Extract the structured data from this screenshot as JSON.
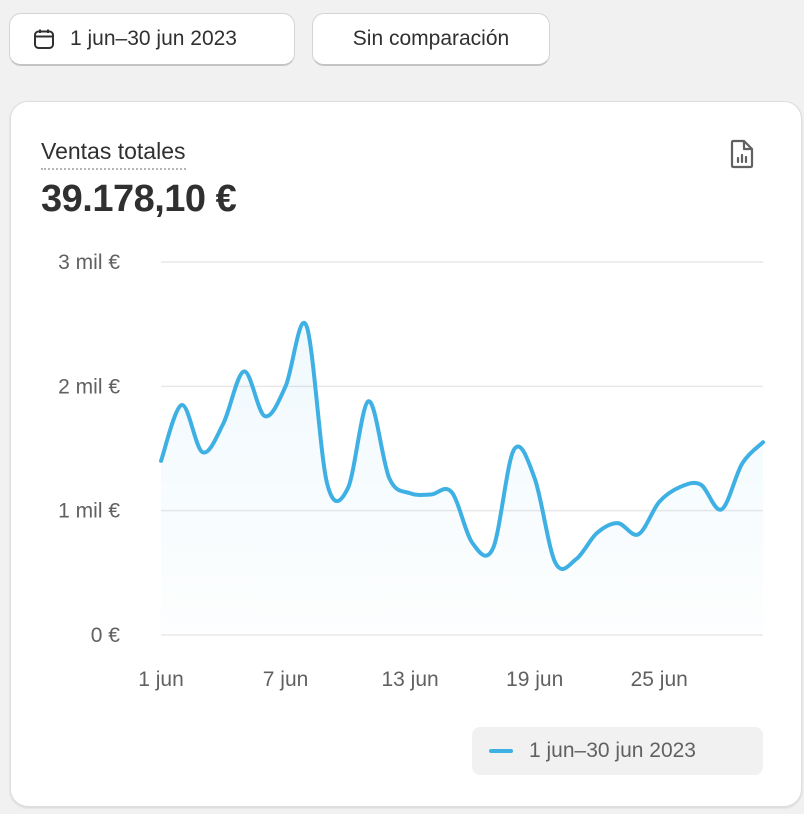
{
  "toolbar": {
    "date_range_label": "1 jun–30 jun 2023",
    "compare_label": "Sin comparación",
    "calendar_icon": "calendar-icon"
  },
  "card": {
    "metric_title": "Ventas totales",
    "metric_value": "39.178,10 €",
    "report_icon": "report-document-icon"
  },
  "colors": {
    "line": "#3fb0e3",
    "grid": "#e8e8e8",
    "axis_text": "#616161"
  },
  "chart_data": {
    "type": "area",
    "title": "",
    "xlabel": "",
    "ylabel": "",
    "y_ticks": [
      0,
      1000,
      2000,
      3000
    ],
    "y_tick_labels": [
      "0 €",
      "1 mil €",
      "2 mil €",
      "3 mil €"
    ],
    "ylim": [
      0,
      3000
    ],
    "x_ticks": [
      "1 jun",
      "7 jun",
      "13 jun",
      "19 jun",
      "25 jun"
    ],
    "grid": true,
    "legend_position": "bottom-right",
    "series": [
      {
        "name": "1 jun–30 jun 2023",
        "x": [
          "1 jun",
          "2 jun",
          "3 jun",
          "4 jun",
          "5 jun",
          "6 jun",
          "7 jun",
          "8 jun",
          "9 jun",
          "10 jun",
          "11 jun",
          "12 jun",
          "13 jun",
          "14 jun",
          "15 jun",
          "16 jun",
          "17 jun",
          "18 jun",
          "19 jun",
          "20 jun",
          "21 jun",
          "22 jun",
          "23 jun",
          "24 jun",
          "25 jun",
          "26 jun",
          "27 jun",
          "28 jun",
          "29 jun",
          "30 jun"
        ],
        "values": [
          1400,
          1850,
          1470,
          1700,
          2120,
          1760,
          2000,
          2490,
          1220,
          1180,
          1880,
          1260,
          1140,
          1130,
          1150,
          740,
          700,
          1490,
          1260,
          580,
          610,
          820,
          900,
          810,
          1070,
          1190,
          1210,
          1010,
          1380,
          1550
        ]
      }
    ]
  }
}
